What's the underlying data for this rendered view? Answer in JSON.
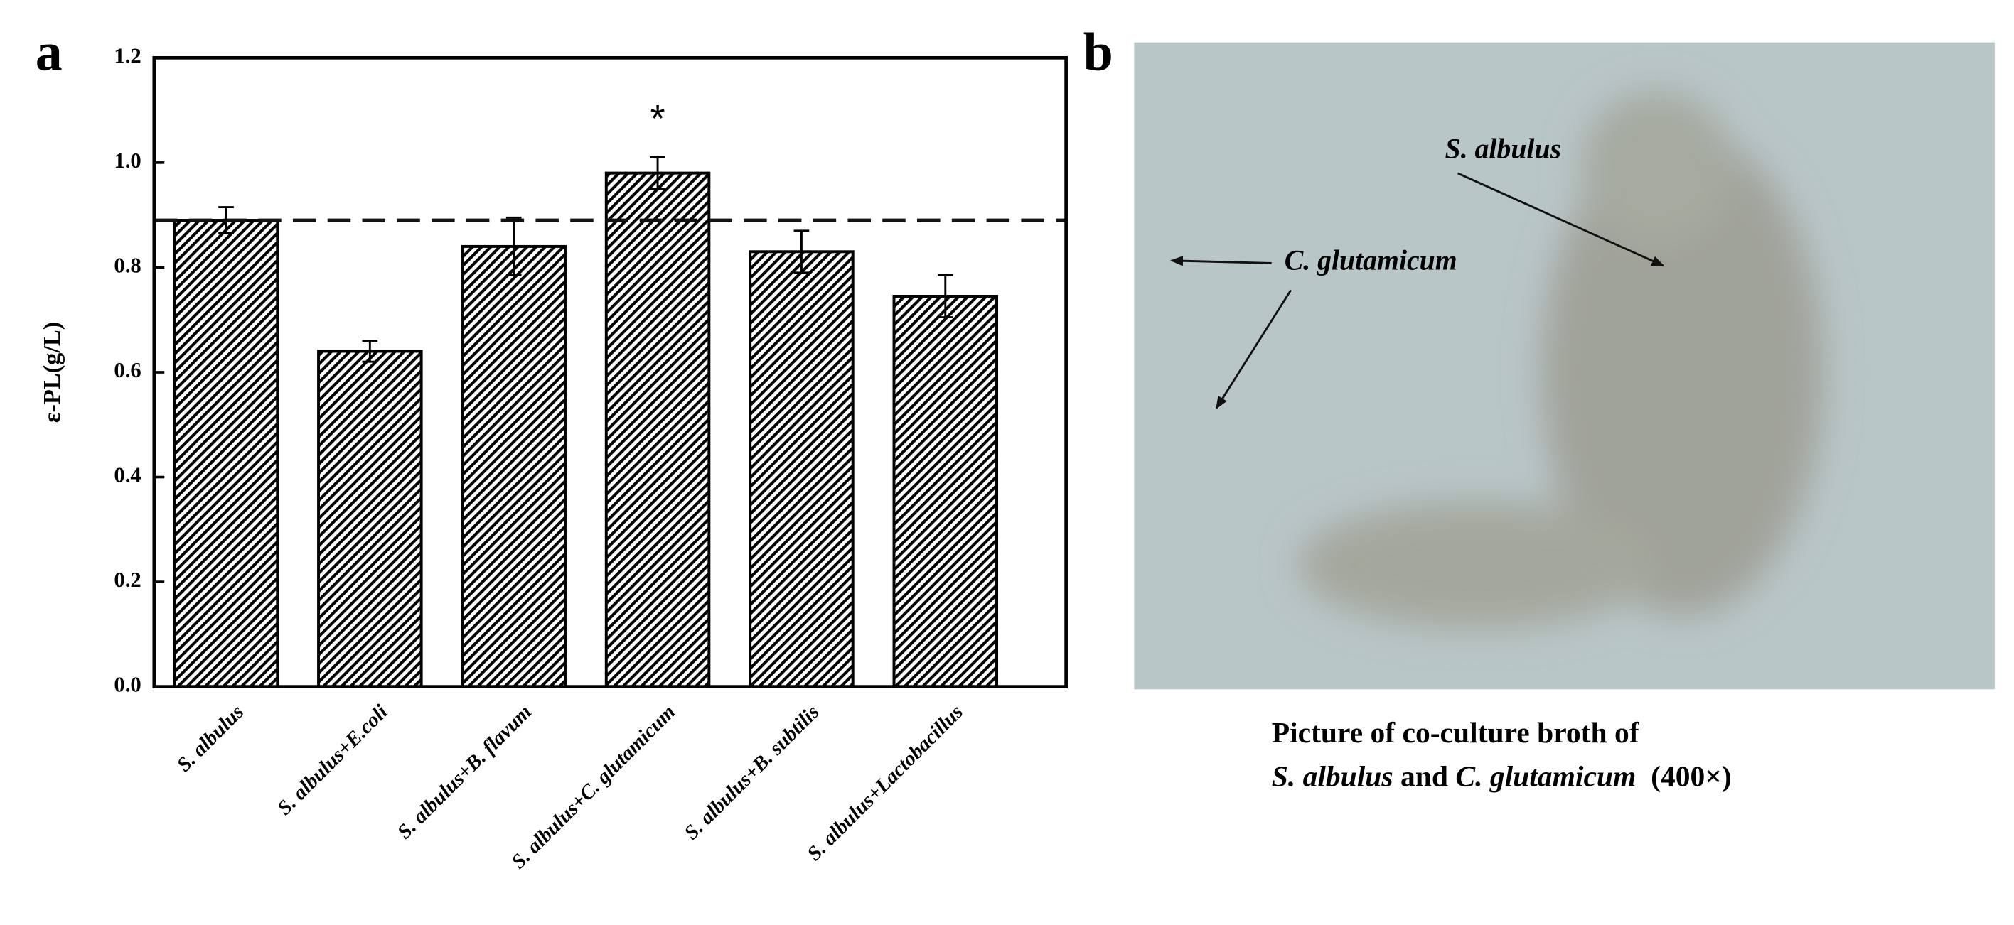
{
  "chart_data": {
    "type": "bar",
    "panel_label": "a",
    "ylabel": "ε-PL(g/L)",
    "categories": [
      "S. albulus",
      "S. albulus+E.coli",
      "S. albulus+B. flavum",
      "S. albulus+C. glutamicum",
      "S. albulus+B. subtilis",
      "S. albulus+Lactobacillus"
    ],
    "values": [
      0.89,
      0.64,
      0.84,
      0.98,
      0.83,
      0.745
    ],
    "errors": [
      0.025,
      0.02,
      0.055,
      0.03,
      0.04,
      0.04
    ],
    "color": "#000000",
    "reference_line": 0.89,
    "annotations": [
      {
        "text": "*",
        "category": 3
      }
    ],
    "ylim": [
      0,
      1.2
    ],
    "yticks": [
      {
        "value": 0,
        "label": "0.0"
      },
      0.2,
      0.4,
      0.6,
      0.8,
      {
        "value": 1,
        "label": "1.0"
      },
      1.2
    ]
  },
  "panel_b": {
    "panel_label": "b",
    "labels": [
      "S. albulus",
      "C. glutamicum"
    ],
    "caption": {
      "line1": "Picture of co-culture broth of",
      "line2": [
        "S. albulus",
        " and ",
        "C. glutamicum",
        "  (400×)"
      ]
    }
  }
}
